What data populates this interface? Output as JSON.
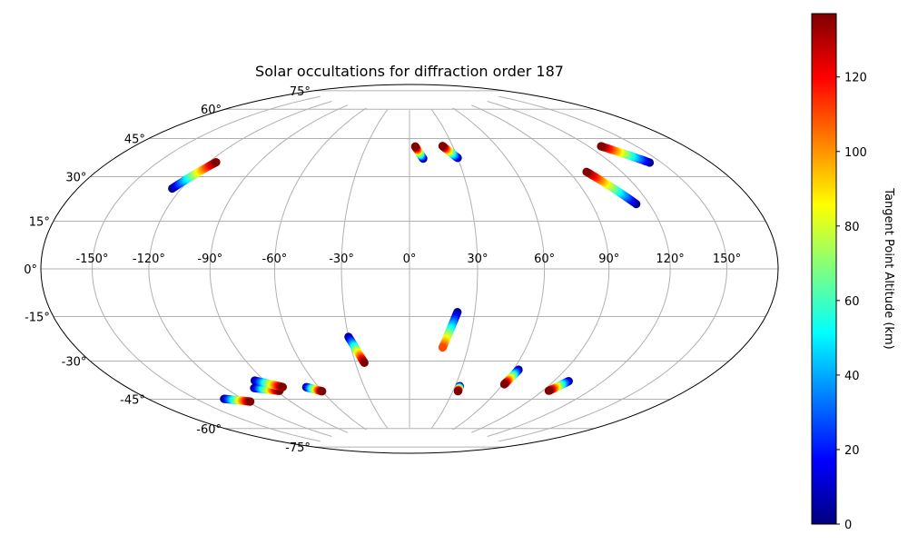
{
  "chart_data": {
    "type": "scatter",
    "projection": "hammer",
    "title": "Solar occultations for diffraction order 187",
    "grid": true,
    "x_ticks": [
      "-150°",
      "-120°",
      "-90°",
      "-60°",
      "-30°",
      "0°",
      "30°",
      "60°",
      "90°",
      "120°",
      "150°"
    ],
    "y_ticks": [
      "-75°",
      "-60°",
      "-45°",
      "-30°",
      "-15°",
      "0°",
      "15°",
      "30°",
      "45°",
      "60°",
      "75°"
    ],
    "colorbar": {
      "label": "Tangent Point Altitude (km)",
      "min": 0,
      "max": 137,
      "ticks": [
        "0",
        "20",
        "40",
        "60",
        "80",
        "100",
        "120"
      ],
      "colormap": "jet"
    },
    "series": [
      {
        "lon_start": -125.0,
        "lat_start": 31.0,
        "lon_end": -115.5,
        "lat_end": 43.0,
        "alt_start": 0,
        "alt_end": 137
      },
      {
        "lon_start": 8.5,
        "lat_start": 50.0,
        "lon_end": 4.0,
        "lat_end": 56.0,
        "alt_start": 0,
        "alt_end": 137
      },
      {
        "lon_start": 30.0,
        "lat_start": 50.0,
        "lon_end": 23.0,
        "lat_end": 56.0,
        "alt_start": 0,
        "alt_end": 137
      },
      {
        "lon_start": 113.0,
        "lat_start": 25.5,
        "lon_end": 100.0,
        "lat_end": 40.0,
        "alt_start": 0,
        "alt_end": 137
      },
      {
        "lon_start": 143.0,
        "lat_start": 40.0,
        "lon_end": 128.0,
        "lat_end": 49.0,
        "alt_start": 0,
        "alt_end": 137
      },
      {
        "lon_start": -132.0,
        "lat_start": -52.0,
        "lon_end": -118.0,
        "lat_end": -55.0,
        "alt_start": 0,
        "alt_end": 137
      },
      {
        "lon_start": -102.0,
        "lat_start": -50.0,
        "lon_end": -88.0,
        "lat_end": -52.5,
        "alt_start": 0,
        "alt_end": 137
      },
      {
        "lon_start": -96.0,
        "lat_start": -47.0,
        "lon_end": -83.0,
        "lat_end": -51.0,
        "alt_start": 0,
        "alt_end": 137
      },
      {
        "lon_start": -68.0,
        "lat_start": -52.0,
        "lon_end": -60.0,
        "lat_end": -54.5,
        "alt_start": 0,
        "alt_end": 137
      },
      {
        "lon_start": -30.0,
        "lat_start": -30.0,
        "lon_end": -25.0,
        "lat_end": -42.0,
        "alt_start": 0,
        "alt_end": 137
      },
      {
        "lon_start": 22.0,
        "lat_start": -19.0,
        "lon_end": 17.0,
        "lat_end": -35.0,
        "alt_start": 0,
        "alt_end": 110
      },
      {
        "lon_start": 33.0,
        "lat_start": -53.0,
        "lon_end": 33.5,
        "lat_end": -55.5,
        "alt_start": 0,
        "alt_end": 137
      },
      {
        "lon_start": 63.0,
        "lat_start": -44.0,
        "lon_end": 61.0,
        "lat_end": -51.0,
        "alt_start": 0,
        "alt_end": 137
      },
      {
        "lon_start": 99.0,
        "lat_start": -47.0,
        "lon_end": 94.0,
        "lat_end": -52.0,
        "alt_start": 0,
        "alt_end": 137
      }
    ]
  }
}
